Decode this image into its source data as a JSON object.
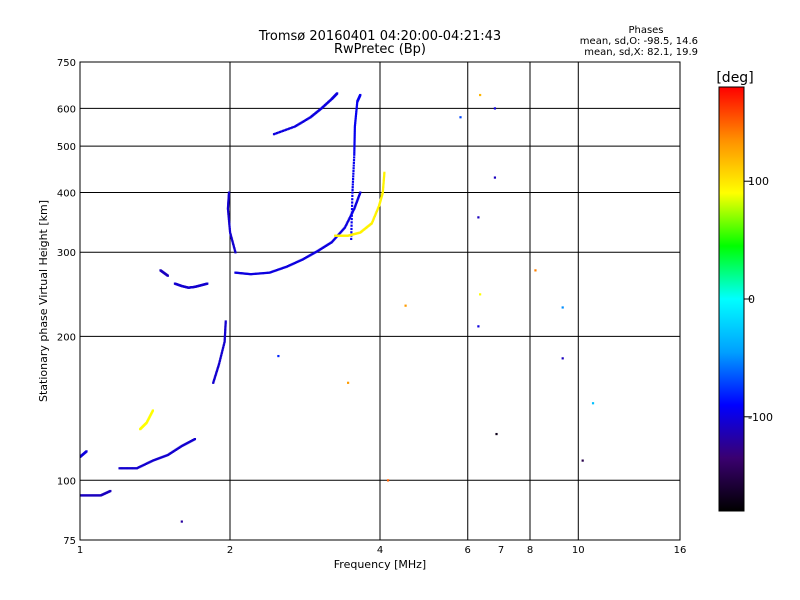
{
  "title": "Tromsø 20160401 04:20:00-04:21:43",
  "subtitle": "RwPretec (Bp)",
  "phase_box": {
    "heading": "Phases",
    "line1": "mean, sd,O: -98.5, 14.6",
    "line2": "mean, sd,X:  82.1, 19.9"
  },
  "colorbar": {
    "unit_label": "[deg]",
    "ticks": [
      "100",
      "0",
      "-100"
    ],
    "tick_values": [
      100,
      0,
      -100
    ],
    "range": [
      -180,
      180
    ],
    "colors": [
      "#000000",
      "#3a0070",
      "#0000ff",
      "#00a0ff",
      "#00ffff",
      "#00ff00",
      "#ffff00",
      "#ff9000",
      "#ff0000"
    ]
  },
  "chart_data": {
    "type": "scatter",
    "title": "Tromsø 20160401 04:20:00-04:21:43",
    "subtitle": "RwPretec (Bp)",
    "xlabel": "Frequency [MHz]",
    "ylabel": "Stationary phase Virtual Height [km]",
    "x_scale": "log",
    "y_scale": "log",
    "xlim": [
      1,
      16
    ],
    "ylim": [
      75,
      750
    ],
    "x_ticks": [
      1,
      2,
      4,
      6,
      8,
      10,
      16
    ],
    "x_tick_labels": [
      "1",
      "2",
      "4",
      "6",
      "7",
      "8",
      "10",
      "16"
    ],
    "x_tick_label_values": [
      1,
      2,
      4,
      6,
      7,
      8,
      10,
      16
    ],
    "y_ticks": [
      75,
      100,
      200,
      300,
      400,
      500,
      600,
      750
    ],
    "y_tick_labels": [
      "75",
      "100",
      "200",
      "300",
      "400",
      "500",
      "600",
      "750"
    ],
    "grid": true,
    "color_encoding": "phase (deg)",
    "traces": [
      {
        "name": "",
        "phase": -105,
        "points": [
          [
            1.55,
            258
          ],
          [
            1.6,
            255
          ],
          [
            1.65,
            253
          ],
          [
            1.7,
            254
          ],
          [
            1.75,
            256
          ],
          [
            1.8,
            258
          ]
        ]
      },
      {
        "name": "",
        "phase": -110,
        "points": [
          [
            1.45,
            275
          ],
          [
            1.5,
            268
          ]
        ]
      },
      {
        "name": "",
        "phase": -100,
        "points": [
          [
            2.05,
            272
          ],
          [
            2.2,
            270
          ],
          [
            2.4,
            272
          ],
          [
            2.6,
            280
          ],
          [
            2.8,
            290
          ],
          [
            3.0,
            302
          ],
          [
            3.2,
            315
          ],
          [
            3.4,
            338
          ],
          [
            3.55,
            370
          ],
          [
            3.65,
            400
          ]
        ]
      },
      {
        "name": "",
        "phase": -105,
        "points": [
          [
            2.05,
            300
          ],
          [
            2.0,
            330
          ],
          [
            1.98,
            370
          ],
          [
            1.99,
            400
          ]
        ]
      },
      {
        "name": "",
        "phase": -100,
        "points": [
          [
            2.45,
            530
          ],
          [
            2.7,
            550
          ],
          [
            2.9,
            575
          ],
          [
            3.05,
            600
          ],
          [
            3.2,
            628
          ],
          [
            3.28,
            645
          ]
        ]
      },
      {
        "name": "",
        "phase": -95,
        "points": [
          [
            3.5,
            320
          ],
          [
            3.52,
            400
          ],
          [
            3.55,
            480
          ],
          [
            3.56,
            550
          ],
          [
            3.6,
            620
          ],
          [
            3.65,
            640
          ]
        ]
      },
      {
        "name": "",
        "phase": 95,
        "points": [
          [
            3.25,
            325
          ],
          [
            3.45,
            325
          ],
          [
            3.65,
            330
          ],
          [
            3.85,
            345
          ],
          [
            3.98,
            375
          ],
          [
            4.05,
            400
          ],
          [
            4.08,
            440
          ]
        ]
      },
      {
        "name": "",
        "phase": -105,
        "points": [
          [
            1.85,
            160
          ],
          [
            1.9,
            175
          ],
          [
            1.95,
            195
          ],
          [
            1.96,
            215
          ]
        ]
      },
      {
        "name": "",
        "phase": -105,
        "points": [
          [
            1.2,
            106
          ],
          [
            1.3,
            106
          ],
          [
            1.4,
            110
          ],
          [
            1.5,
            113
          ],
          [
            1.6,
            118
          ],
          [
            1.7,
            122
          ]
        ]
      },
      {
        "name": "",
        "phase": -100,
        "points": [
          [
            1.0,
            112
          ],
          [
            1.03,
            115
          ]
        ]
      },
      {
        "name": "",
        "phase": -110,
        "points": [
          [
            1.0,
            93
          ],
          [
            1.05,
            93
          ],
          [
            1.1,
            93
          ],
          [
            1.15,
            95
          ]
        ]
      },
      {
        "name": "",
        "phase": 90,
        "points": [
          [
            1.32,
            128
          ],
          [
            1.36,
            132
          ],
          [
            1.4,
            140
          ]
        ]
      }
    ],
    "scattered_points": [
      {
        "x": 6.35,
        "y": 640,
        "phase": 120
      },
      {
        "x": 6.8,
        "y": 600,
        "phase": -100
      },
      {
        "x": 6.8,
        "y": 430,
        "phase": -110
      },
      {
        "x": 6.3,
        "y": 355,
        "phase": -110
      },
      {
        "x": 6.35,
        "y": 245,
        "phase": 90
      },
      {
        "x": 6.3,
        "y": 210,
        "phase": -100
      },
      {
        "x": 8.2,
        "y": 275,
        "phase": 140
      },
      {
        "x": 9.3,
        "y": 180,
        "phase": -110
      },
      {
        "x": 10.2,
        "y": 110,
        "phase": -150
      },
      {
        "x": 10.7,
        "y": 145,
        "phase": -30
      },
      {
        "x": 6.85,
        "y": 125,
        "phase": -170
      },
      {
        "x": 4.5,
        "y": 232,
        "phase": 130
      },
      {
        "x": 4.15,
        "y": 100,
        "phase": 150
      },
      {
        "x": 3.45,
        "y": 160,
        "phase": 130
      },
      {
        "x": 2.5,
        "y": 182,
        "phase": -80
      },
      {
        "x": 1.6,
        "y": 82,
        "phase": -120
      },
      {
        "x": 5.8,
        "y": 575,
        "phase": -70
      },
      {
        "x": 9.3,
        "y": 230,
        "phase": -50
      }
    ]
  }
}
